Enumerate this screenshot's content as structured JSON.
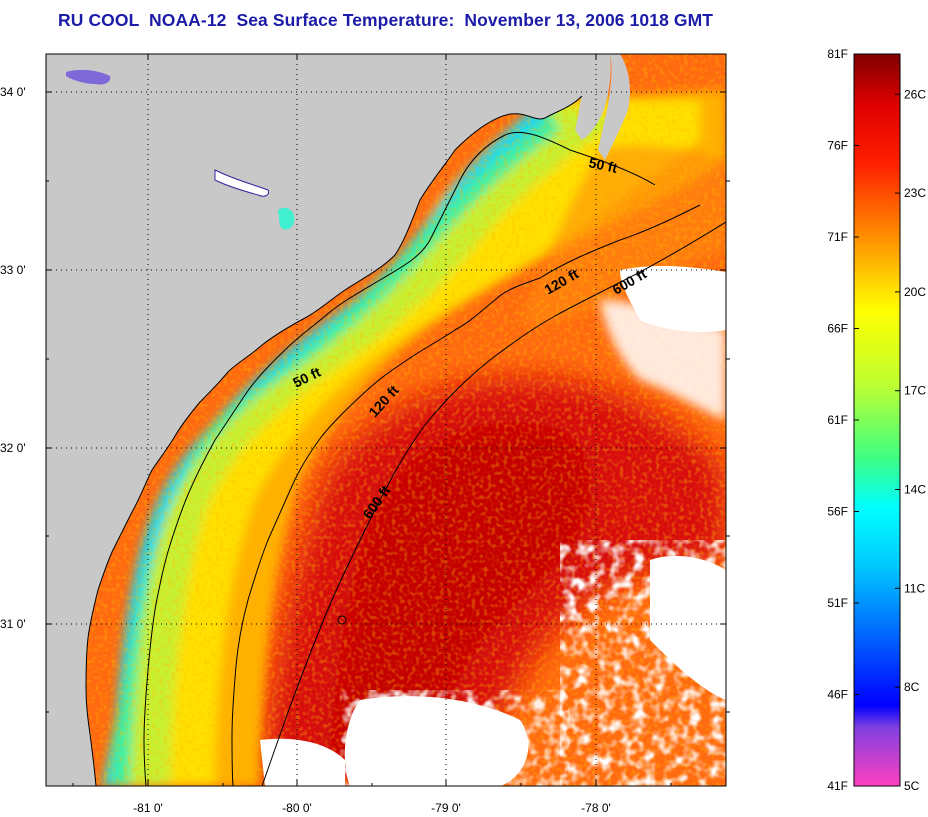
{
  "title": "RU COOL  NOAA-12  Sea Surface Temperature:  November 13, 2006 1018 GMT",
  "map": {
    "lon_ticks": [
      "-81 0'",
      "-80 0'",
      "-79 0'",
      "-78 0'"
    ],
    "lat_ticks": [
      "34 0'",
      "33 0'",
      "32 0'",
      "31 0'"
    ],
    "contours": [
      {
        "label": "50 ft"
      },
      {
        "label": "120 ft"
      },
      {
        "label": "600 ft"
      },
      {
        "label": "50 ft"
      },
      {
        "label": "120 ft"
      },
      {
        "label": "600 ft"
      }
    ],
    "land_color": "#c8c8c8",
    "cloud_color": "#ffffff"
  },
  "colorbar": {
    "fahrenheit": [
      "81F",
      "76F",
      "71F",
      "66F",
      "61F",
      "56F",
      "51F",
      "46F",
      "41F"
    ],
    "celsius": [
      "26C",
      "23C",
      "20C",
      "17C",
      "14C",
      "11C",
      "8C",
      "5C"
    ],
    "range_f": [
      41,
      81
    ]
  }
}
